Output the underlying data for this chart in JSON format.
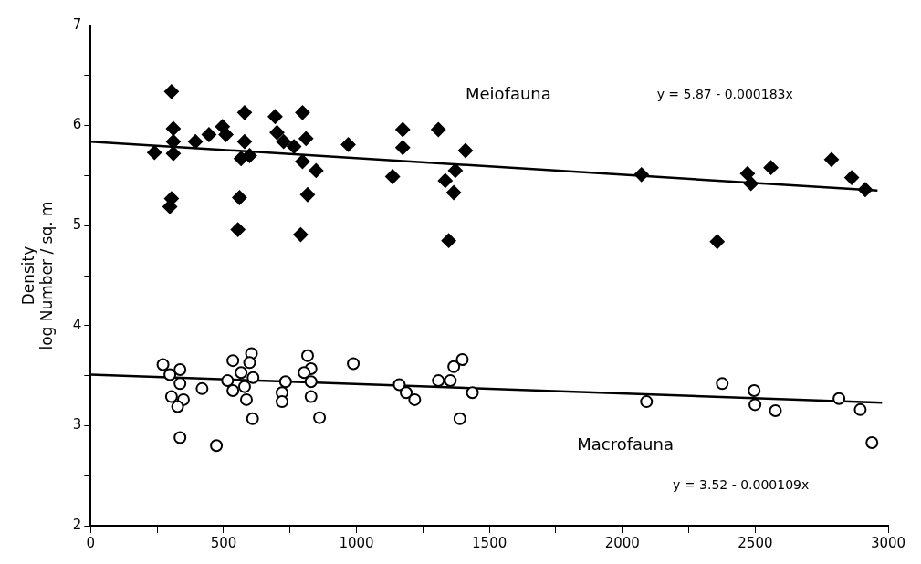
{
  "chart_data": {
    "type": "scatter",
    "ylabel": "Density\nlog Number / sq. m",
    "xlim": [
      0,
      3000
    ],
    "ylim": [
      2,
      7
    ],
    "xticks": [
      0,
      {
        "value": 250,
        "label": null
      },
      500,
      {
        "value": 750,
        "label": null
      },
      1000,
      {
        "value": 1250,
        "label": null
      },
      1500,
      {
        "value": 1750,
        "label": null
      },
      2000,
      {
        "value": 2250,
        "label": null
      },
      2500,
      {
        "value": 2750,
        "label": null
      },
      3000
    ],
    "yticks": [
      2,
      {
        "value": 2.5,
        "label": null
      },
      3,
      {
        "value": 3.5,
        "label": null
      },
      4,
      {
        "value": 4.5,
        "label": null
      },
      5,
      {
        "value": 5.5,
        "label": null
      },
      6,
      {
        "value": 6.5,
        "label": null
      },
      7
    ],
    "grid": false,
    "legend": false,
    "annotations": [
      "y = 5.87 - 0.000183x",
      "y = 3.52 - 0.000109x"
    ],
    "series": [
      {
        "name": "Meiofauna",
        "color": "#000000",
        "marker": "diamond",
        "x": [
          304,
          311,
          311,
          240,
          311,
          304,
          298,
          394,
          445,
          496,
          509,
          579,
          579,
          566,
          598,
          560,
          554,
          694,
          701,
          726,
          765,
          797,
          810,
          797,
          848,
          816,
          790,
          969,
          1174,
          1174,
          1136,
          1308,
          1410,
          1334,
          1372,
          1366,
          1347,
          2072,
          2471,
          2484,
          2559,
          2787,
          2863,
          2914,
          2357
        ],
        "values": [
          6.34,
          5.97,
          5.84,
          5.73,
          5.72,
          5.27,
          5.19,
          5.84,
          5.91,
          5.99,
          5.91,
          6.13,
          5.84,
          5.67,
          5.7,
          5.28,
          4.96,
          6.09,
          5.93,
          5.84,
          5.79,
          6.13,
          5.87,
          5.64,
          5.55,
          5.31,
          4.91,
          5.81,
          5.96,
          5.78,
          5.49,
          5.96,
          5.75,
          5.45,
          5.55,
          5.33,
          4.85,
          5.51,
          5.52,
          5.42,
          5.58,
          5.66,
          5.48,
          5.36,
          4.84
        ]
      },
      {
        "name": "Macrofauna",
        "color": "#000000",
        "marker": "circle",
        "x": [
          272,
          298,
          336,
          336,
          304,
          349,
          327,
          336,
          419,
          473,
          535,
          515,
          535,
          566,
          605,
          598,
          611,
          579,
          586,
          609,
          733,
          720,
          720,
          816,
          829,
          803,
          829,
          829,
          861,
          988,
          1161,
          1187,
          1219,
          1308,
          1353,
          1366,
          1398,
          1436,
          1389,
          2091,
          2376,
          2496,
          2499,
          2576,
          2815,
          2895,
          2939
        ],
        "values": [
          3.61,
          3.51,
          3.56,
          3.42,
          3.29,
          3.26,
          3.19,
          2.88,
          3.37,
          2.8,
          3.65,
          3.45,
          3.35,
          3.53,
          3.72,
          3.63,
          3.48,
          3.39,
          3.26,
          3.07,
          3.44,
          3.33,
          3.24,
          3.7,
          3.57,
          3.53,
          3.44,
          3.29,
          3.08,
          3.62,
          3.41,
          3.33,
          3.26,
          3.45,
          3.45,
          3.59,
          3.66,
          3.33,
          3.07,
          3.24,
          3.42,
          3.35,
          3.21,
          3.15,
          3.27,
          3.16,
          2.83
        ]
      },
      {
        "type": "line",
        "color": "#000000",
        "marker": "none",
        "x": [
          0,
          2960
        ],
        "values": [
          5.84,
          5.35
        ]
      },
      {
        "type": "line",
        "color": "#000000",
        "marker": "none",
        "x": [
          0,
          2977
        ],
        "values": [
          3.51,
          3.23
        ]
      }
    ]
  }
}
